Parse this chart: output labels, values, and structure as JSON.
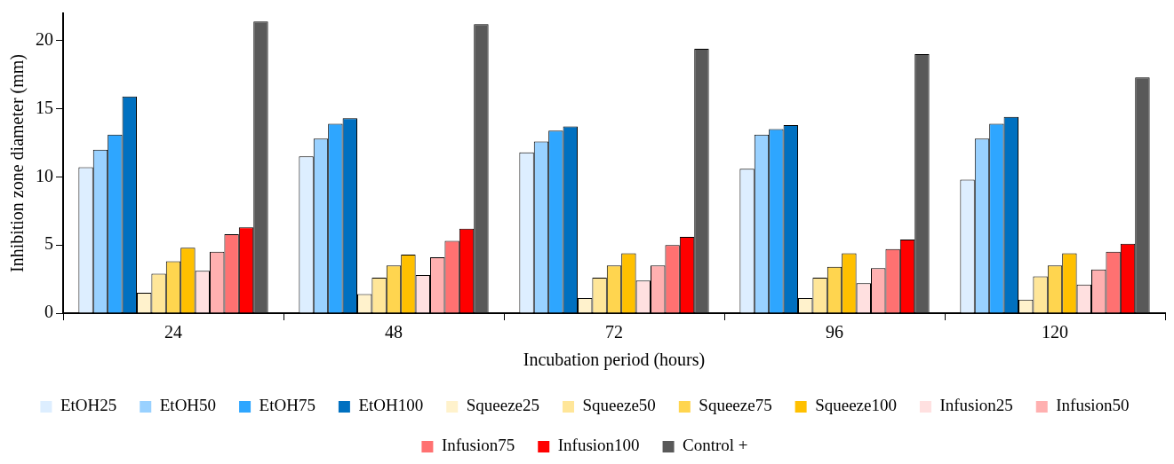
{
  "chart_data": {
    "type": "bar",
    "xlabel": "Incubation period (hours)",
    "ylabel": "Inhibition zone diameter (mm)",
    "categories": [
      "24",
      "48",
      "72",
      "96",
      "120"
    ],
    "series": [
      {
        "name": "EtOH25",
        "color": "#ddeeff",
        "values": [
          10.7,
          11.5,
          11.8,
          10.6,
          9.8
        ]
      },
      {
        "name": "EtOH50",
        "color": "#99d1ff",
        "values": [
          12.0,
          12.8,
          12.6,
          13.1,
          12.8
        ]
      },
      {
        "name": "EtOH75",
        "color": "#2ea6ff",
        "values": [
          13.1,
          13.9,
          13.4,
          13.5,
          13.9
        ]
      },
      {
        "name": "EtOH100",
        "color": "#0070c0",
        "values": [
          15.9,
          14.3,
          13.7,
          13.8,
          14.4
        ]
      },
      {
        "name": "Squeeze25",
        "color": "#fff2cc",
        "values": [
          1.5,
          1.4,
          1.1,
          1.1,
          1.0
        ]
      },
      {
        "name": "Squeeze50",
        "color": "#ffe699",
        "values": [
          2.9,
          2.6,
          2.6,
          2.6,
          2.7
        ]
      },
      {
        "name": "Squeeze75",
        "color": "#ffd54f",
        "values": [
          3.8,
          3.5,
          3.5,
          3.4,
          3.5
        ]
      },
      {
        "name": "Squeeze100",
        "color": "#ffc000",
        "values": [
          4.8,
          4.3,
          4.4,
          4.4,
          4.4
        ]
      },
      {
        "name": "Infusion25",
        "color": "#ffe0e0",
        "values": [
          3.1,
          2.8,
          2.4,
          2.2,
          2.1
        ]
      },
      {
        "name": "Infusion50",
        "color": "#ffb0b0",
        "values": [
          4.5,
          4.1,
          3.5,
          3.3,
          3.2
        ]
      },
      {
        "name": "Infusion75",
        "color": "#ff7171",
        "values": [
          5.8,
          5.3,
          5.0,
          4.7,
          4.5
        ]
      },
      {
        "name": "Infusion100",
        "color": "#ff0000",
        "values": [
          6.3,
          6.2,
          5.6,
          5.4,
          5.1
        ]
      },
      {
        "name": "Control +",
        "color": "#595959",
        "values": [
          21.4,
          21.2,
          19.4,
          19.0,
          17.3
        ]
      }
    ],
    "ylim": [
      0,
      22
    ],
    "yticks": [
      0,
      5,
      10,
      15,
      20
    ],
    "grid": false,
    "legend": "bottom"
  }
}
